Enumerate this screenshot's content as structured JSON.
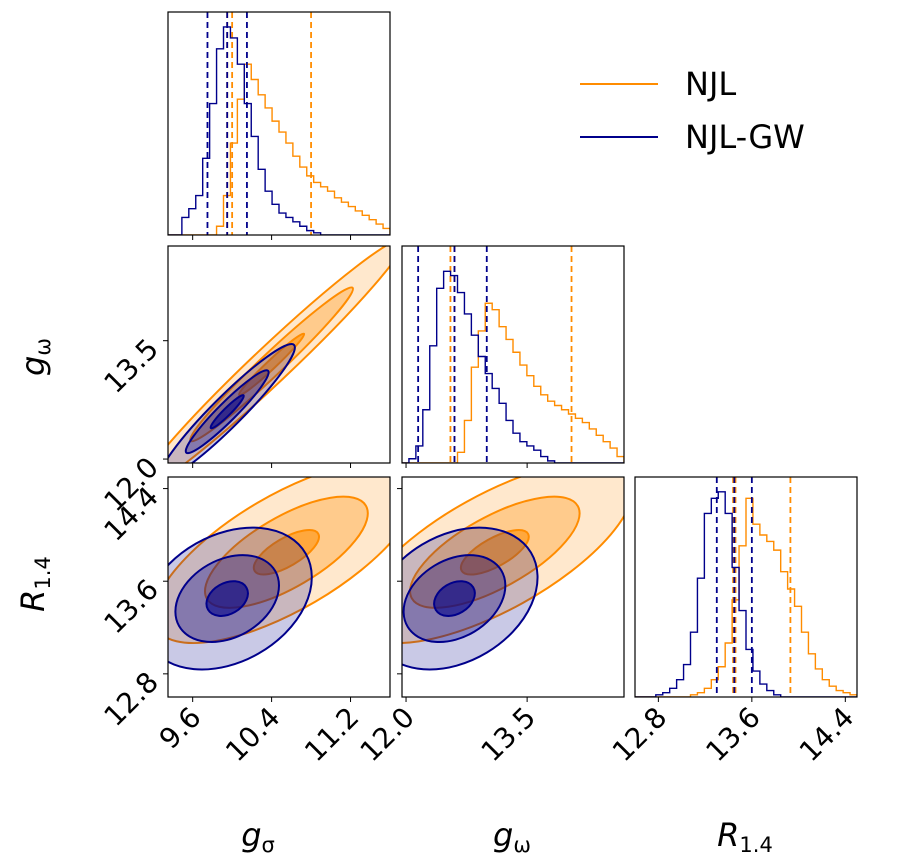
{
  "chart_data": {
    "type": "corner",
    "title": "",
    "parameters": [
      {
        "key": "gs",
        "symbol": "g",
        "subscript": "σ",
        "range": [
          9.35,
          11.6
        ],
        "ticks": [
          "9.6",
          "10.4",
          "11.2"
        ]
      },
      {
        "key": "gw",
        "symbol": "g",
        "subscript": "ω",
        "range": [
          11.95,
          14.7
        ],
        "ticks": [
          "12.0",
          "13.5"
        ]
      },
      {
        "key": "r14",
        "symbol": "R",
        "subscript": "1.4",
        "range": [
          12.6,
          14.5
        ],
        "ticks": [
          "12.8",
          "13.6",
          "14.4"
        ]
      }
    ],
    "series": [
      {
        "name": "NJL",
        "color": "#ff8c00",
        "quantiles": {
          "gs": [
            9.95,
            10.0,
            10.8
          ],
          "gw": [
            12.55,
            12.6,
            14.05
          ],
          "r14": [
            13.44,
            13.46,
            13.93
          ]
        },
        "hist": {
          "gs": [
            0,
            0,
            0,
            0,
            0,
            0,
            0,
            0.04,
            0.18,
            0.42,
            0.62,
            0.78,
            0.71,
            0.64,
            0.58,
            0.52,
            0.47,
            0.42,
            0.36,
            0.31,
            0.27,
            0.24,
            0.22,
            0.2,
            0.17,
            0.15,
            0.13,
            0.11,
            0.09,
            0.07,
            0.05,
            0.03
          ],
          "gw": [
            0,
            0,
            0,
            0,
            0,
            0,
            0,
            0,
            0.05,
            0.2,
            0.45,
            0.62,
            0.75,
            0.72,
            0.64,
            0.58,
            0.52,
            0.46,
            0.41,
            0.36,
            0.32,
            0.29,
            0.27,
            0.25,
            0.23,
            0.21,
            0.19,
            0.16,
            0.13,
            0.1,
            0.07,
            0.03
          ],
          "r14": [
            0,
            0,
            0,
            0,
            0,
            0,
            0,
            0,
            0.01,
            0.02,
            0.04,
            0.08,
            0.14,
            0.25,
            0.45,
            0.7,
            0.92,
            0.8,
            0.75,
            0.72,
            0.68,
            0.58,
            0.5,
            0.42,
            0.3,
            0.2,
            0.13,
            0.08,
            0.05,
            0.03,
            0.02,
            0.01
          ]
        },
        "contours": {
          "gw_vs_gs": {
            "center": [
              10.4,
              13.2
            ],
            "sd": [
              0.55,
              0.65
            ],
            "rho": 0.98
          },
          "r14_vs_gs": {
            "center": [
              10.55,
              13.85
            ],
            "sd": [
              0.55,
              0.32
            ],
            "rho": 0.7
          },
          "r14_vs_gw": {
            "center": [
              13.1,
              13.85
            ],
            "sd": [
              0.7,
              0.32
            ],
            "rho": 0.7
          }
        }
      },
      {
        "name": "NJL-GW",
        "color": "#00008b",
        "quantiles": {
          "gs": [
            9.75,
            9.95,
            10.15
          ],
          "gw": [
            12.15,
            12.6,
            13.0
          ],
          "r14": [
            13.3,
            13.45,
            13.6
          ]
        },
        "hist": {
          "gs": [
            0,
            0,
            0.08,
            0.12,
            0.18,
            0.35,
            0.6,
            0.85,
            0.95,
            0.9,
            0.78,
            0.6,
            0.45,
            0.3,
            0.2,
            0.14,
            0.1,
            0.08,
            0.06,
            0.04,
            0.02,
            0.01,
            0,
            0,
            0,
            0,
            0,
            0,
            0,
            0,
            0,
            0
          ],
          "gw": [
            0,
            0.02,
            0.08,
            0.25,
            0.55,
            0.82,
            0.9,
            0.88,
            0.8,
            0.7,
            0.6,
            0.5,
            0.42,
            0.35,
            0.28,
            0.2,
            0.14,
            0.1,
            0.08,
            0.06,
            0.03,
            0.01,
            0,
            0,
            0,
            0,
            0,
            0,
            0,
            0,
            0,
            0
          ],
          "r14": [
            0,
            0,
            0,
            0.01,
            0.02,
            0.04,
            0.08,
            0.15,
            0.3,
            0.55,
            0.85,
            0.92,
            0.95,
            0.85,
            0.6,
            0.4,
            0.22,
            0.12,
            0.06,
            0.03,
            0.01,
            0,
            0,
            0,
            0,
            0,
            0,
            0,
            0,
            0,
            0,
            0
          ]
        },
        "contours": {
          "gw_vs_gs": {
            "center": [
              9.95,
              12.6
            ],
            "sd": [
              0.28,
              0.35
            ],
            "rho": 0.95
          },
          "r14_vs_gs": {
            "center": [
              9.95,
              13.45
            ],
            "sd": [
              0.35,
              0.25
            ],
            "rho": 0.3
          },
          "r14_vs_gw": {
            "center": [
              12.6,
              13.45
            ],
            "sd": [
              0.42,
              0.25
            ],
            "rho": 0.3
          }
        }
      }
    ],
    "legend": {
      "position": "top-right"
    }
  }
}
